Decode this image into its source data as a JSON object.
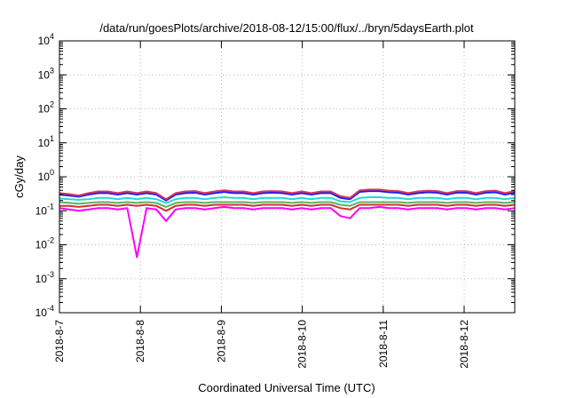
{
  "chart_data": {
    "type": "line",
    "title": "/data/run/goesPlots/archive/2018-08-12/15:00/flux/../bryn/5daysEarth.plot",
    "xlabel": "Coordinated Universal Time (UTC)",
    "ylabel": "cGy/day",
    "y_scale": "log",
    "ylim": [
      0.0001,
      10000
    ],
    "y_ticks": [
      {
        "base": "10",
        "exp": "-4"
      },
      {
        "base": "10",
        "exp": "-3"
      },
      {
        "base": "10",
        "exp": "-2"
      },
      {
        "base": "10",
        "exp": "-1"
      },
      {
        "base": "10",
        "exp": "0"
      },
      {
        "base": "10",
        "exp": "1"
      },
      {
        "base": "10",
        "exp": "2"
      },
      {
        "base": "10",
        "exp": "3"
      },
      {
        "base": "10",
        "exp": "4"
      }
    ],
    "xlim": [
      "2018-08-07T00:00",
      "2018-08-12T15:00"
    ],
    "x_ticks": [
      "2018-8-7",
      "2018-8-8",
      "2018-8-9",
      "2018-8-10",
      "2018-8-11",
      "2018-8-12"
    ],
    "grid": true,
    "legend": "none",
    "series": [
      {
        "color": "#ff00ff",
        "values": [
          0.12,
          0.11,
          0.1,
          0.11,
          0.12,
          0.12,
          0.11,
          0.12,
          0.0043,
          0.12,
          0.11,
          0.05,
          0.11,
          0.12,
          0.12,
          0.11,
          0.12,
          0.13,
          0.12,
          0.12,
          0.11,
          0.12,
          0.12,
          0.12,
          0.11,
          0.12,
          0.11,
          0.12,
          0.12,
          0.07,
          0.06,
          0.12,
          0.12,
          0.13,
          0.12,
          0.12,
          0.11,
          0.12,
          0.12,
          0.12,
          0.11,
          0.12,
          0.12,
          0.11,
          0.12,
          0.12,
          0.11,
          0.12
        ]
      },
      {
        "color": "#cc3333",
        "values": [
          0.14,
          0.14,
          0.13,
          0.14,
          0.15,
          0.15,
          0.14,
          0.15,
          0.14,
          0.15,
          0.14,
          0.1,
          0.14,
          0.15,
          0.15,
          0.14,
          0.15,
          0.15,
          0.15,
          0.15,
          0.14,
          0.15,
          0.15,
          0.15,
          0.14,
          0.15,
          0.14,
          0.15,
          0.15,
          0.12,
          0.11,
          0.15,
          0.15,
          0.15,
          0.15,
          0.15,
          0.14,
          0.15,
          0.15,
          0.15,
          0.14,
          0.15,
          0.15,
          0.14,
          0.15,
          0.15,
          0.14,
          0.15
        ]
      },
      {
        "color": "#5ab45a",
        "values": [
          0.18,
          0.17,
          0.16,
          0.17,
          0.18,
          0.18,
          0.17,
          0.18,
          0.17,
          0.18,
          0.17,
          0.13,
          0.17,
          0.18,
          0.18,
          0.17,
          0.18,
          0.18,
          0.18,
          0.18,
          0.17,
          0.18,
          0.18,
          0.18,
          0.17,
          0.18,
          0.17,
          0.18,
          0.18,
          0.15,
          0.14,
          0.18,
          0.18,
          0.18,
          0.18,
          0.18,
          0.17,
          0.18,
          0.18,
          0.18,
          0.17,
          0.18,
          0.18,
          0.17,
          0.18,
          0.18,
          0.17,
          0.18
        ]
      },
      {
        "color": "#27d7d7",
        "values": [
          0.23,
          0.22,
          0.21,
          0.22,
          0.24,
          0.24,
          0.22,
          0.24,
          0.22,
          0.24,
          0.22,
          0.17,
          0.22,
          0.24,
          0.24,
          0.22,
          0.24,
          0.25,
          0.24,
          0.24,
          0.22,
          0.24,
          0.24,
          0.24,
          0.22,
          0.24,
          0.22,
          0.24,
          0.24,
          0.19,
          0.18,
          0.24,
          0.25,
          0.25,
          0.24,
          0.24,
          0.22,
          0.24,
          0.24,
          0.24,
          0.22,
          0.24,
          0.24,
          0.22,
          0.24,
          0.24,
          0.22,
          0.24
        ]
      },
      {
        "color": "#1a1aff",
        "values": [
          0.3,
          0.28,
          0.26,
          0.3,
          0.33,
          0.33,
          0.3,
          0.33,
          0.3,
          0.33,
          0.3,
          0.2,
          0.3,
          0.33,
          0.34,
          0.3,
          0.33,
          0.36,
          0.33,
          0.33,
          0.3,
          0.33,
          0.34,
          0.33,
          0.3,
          0.33,
          0.3,
          0.33,
          0.33,
          0.24,
          0.22,
          0.36,
          0.38,
          0.38,
          0.35,
          0.34,
          0.3,
          0.33,
          0.35,
          0.34,
          0.3,
          0.34,
          0.34,
          0.3,
          0.34,
          0.35,
          0.3,
          0.34
        ]
      },
      {
        "color": "#d6365a",
        "values": [
          0.33,
          0.31,
          0.28,
          0.33,
          0.37,
          0.37,
          0.33,
          0.37,
          0.33,
          0.37,
          0.33,
          0.22,
          0.33,
          0.37,
          0.38,
          0.33,
          0.37,
          0.4,
          0.37,
          0.37,
          0.33,
          0.37,
          0.38,
          0.37,
          0.33,
          0.37,
          0.33,
          0.37,
          0.37,
          0.27,
          0.24,
          0.4,
          0.42,
          0.42,
          0.39,
          0.38,
          0.33,
          0.37,
          0.39,
          0.38,
          0.33,
          0.38,
          0.38,
          0.33,
          0.38,
          0.39,
          0.33,
          0.38
        ]
      }
    ]
  }
}
